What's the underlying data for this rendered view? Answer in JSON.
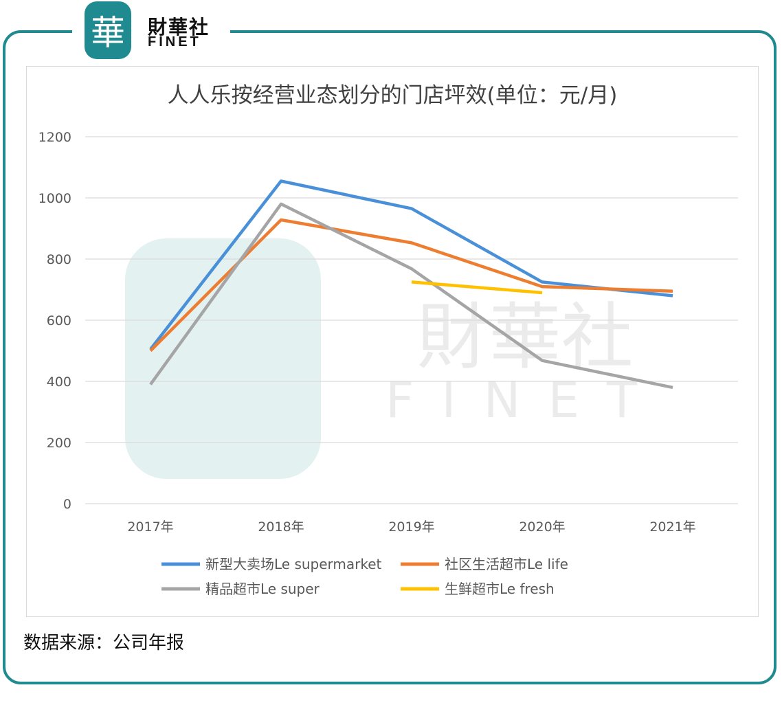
{
  "brand": {
    "mark": "華",
    "name_cn": "財華社",
    "name_en": "FINET"
  },
  "source_note": "数据来源：公司年报",
  "colors": {
    "frame": "#1f8a8f",
    "grid": "#d9d9d9",
    "axis_text": "#595959"
  },
  "chart_data": {
    "type": "line",
    "title": "人人乐按经营业态划分的门店坪效(单位：元/月)",
    "categories": [
      "2017年",
      "2018年",
      "2019年",
      "2020年",
      "2021年"
    ],
    "ylim": [
      0,
      1200
    ],
    "yticks": [
      0,
      200,
      400,
      600,
      800,
      1000,
      1200
    ],
    "grid": true,
    "legend_position": "bottom",
    "series": [
      {
        "name": "新型大卖场Le supermarket",
        "color": "#4a90d9",
        "values": [
          505,
          1055,
          965,
          725,
          680
        ]
      },
      {
        "name": "社区生活超市Le life",
        "color": "#ed7d31",
        "values": [
          500,
          928,
          853,
          710,
          695
        ]
      },
      {
        "name": "精品超市Le super",
        "color": "#a5a5a5",
        "values": [
          390,
          980,
          768,
          468,
          380
        ]
      },
      {
        "name": "生鲜超市Le fresh",
        "color": "#ffc000",
        "values": [
          null,
          null,
          725,
          690,
          null
        ]
      }
    ]
  }
}
